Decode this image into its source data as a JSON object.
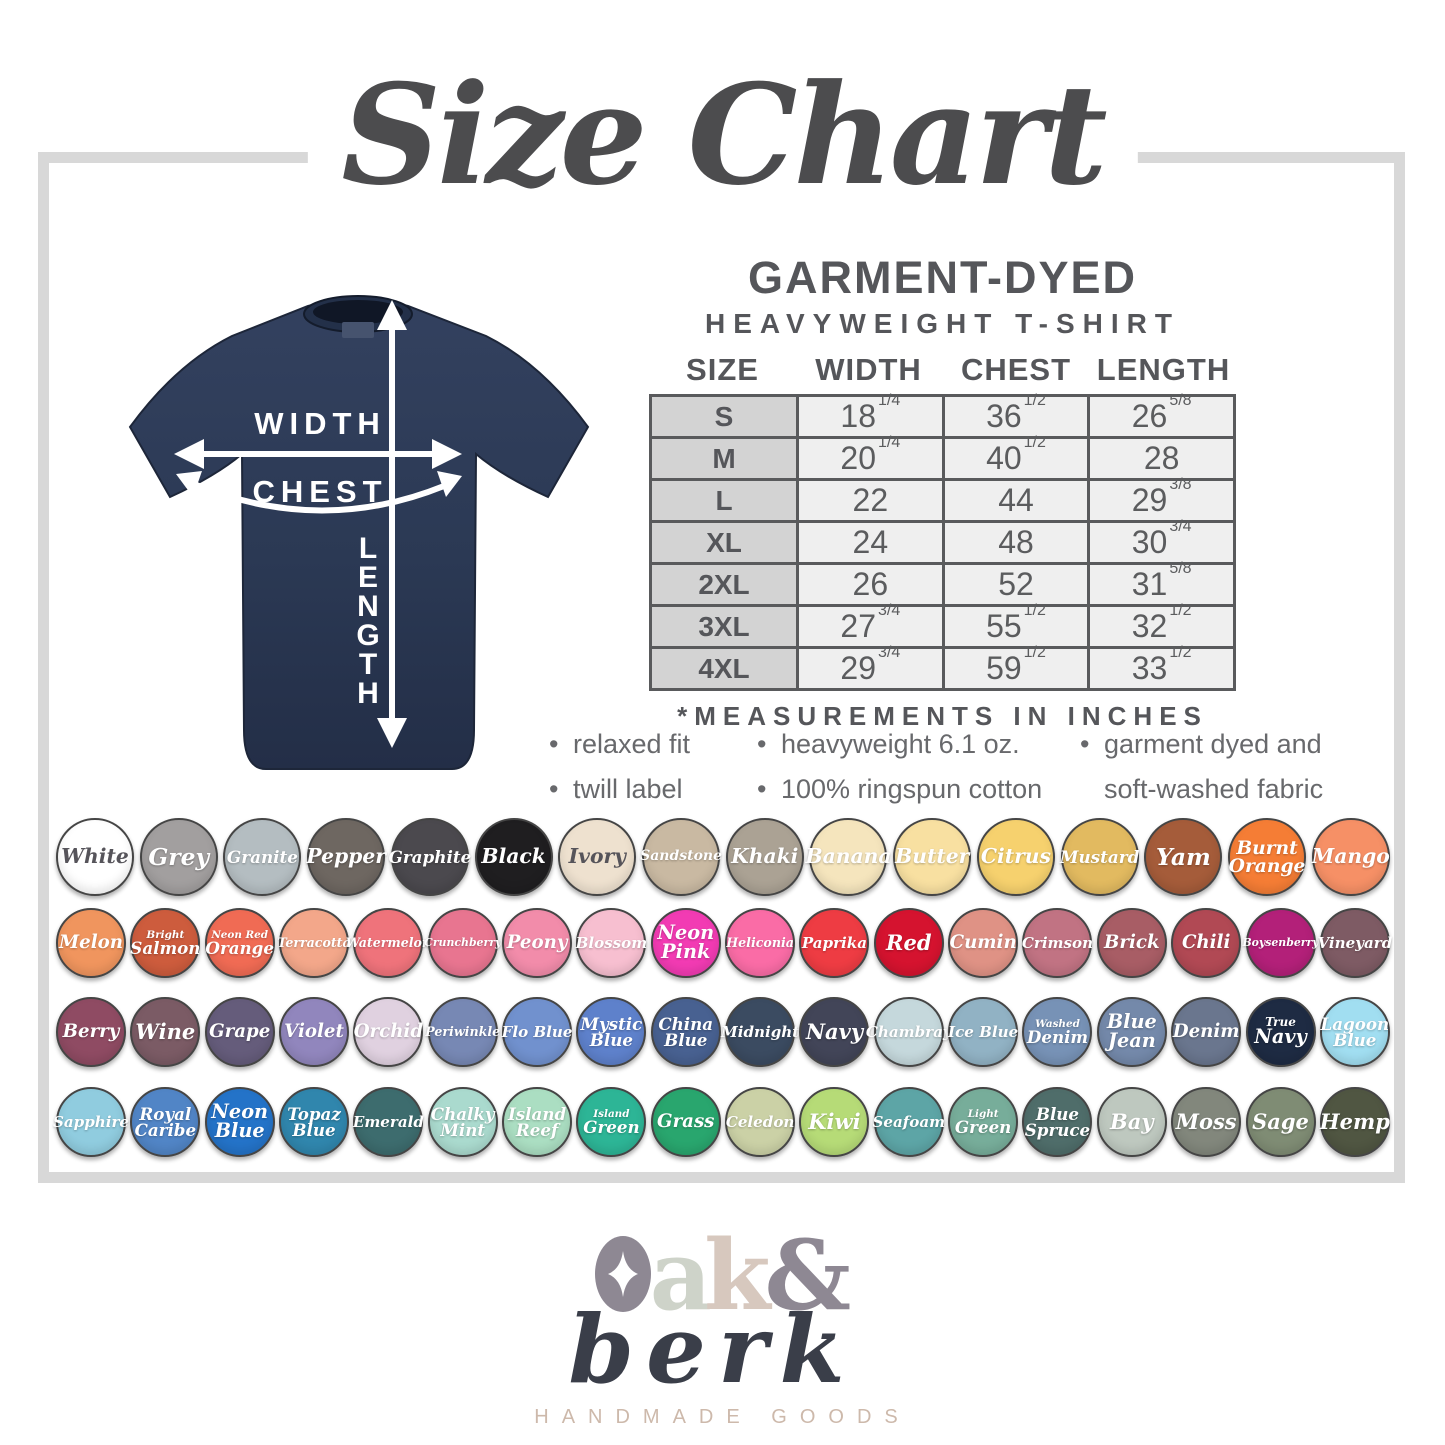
{
  "title": "Size Chart",
  "product": {
    "heading": "GARMENT-DYED",
    "subheading": "HEAVYWEIGHT T-SHIRT"
  },
  "size_table": {
    "columns": [
      "SIZE",
      "WIDTH",
      "CHEST",
      "LENGTH"
    ],
    "rows": [
      {
        "size": "S",
        "width": {
          "whole": "18",
          "frac": "1/4"
        },
        "chest": {
          "whole": "36",
          "frac": "1/2"
        },
        "length": {
          "whole": "26",
          "frac": "5/8"
        }
      },
      {
        "size": "M",
        "width": {
          "whole": "20",
          "frac": "1/4"
        },
        "chest": {
          "whole": "40",
          "frac": "1/2"
        },
        "length": {
          "whole": "28",
          "frac": ""
        }
      },
      {
        "size": "L",
        "width": {
          "whole": "22",
          "frac": ""
        },
        "chest": {
          "whole": "44",
          "frac": ""
        },
        "length": {
          "whole": "29",
          "frac": "3/8"
        }
      },
      {
        "size": "XL",
        "width": {
          "whole": "24",
          "frac": ""
        },
        "chest": {
          "whole": "48",
          "frac": ""
        },
        "length": {
          "whole": "30",
          "frac": "3/4"
        }
      },
      {
        "size": "2XL",
        "width": {
          "whole": "26",
          "frac": ""
        },
        "chest": {
          "whole": "52",
          "frac": ""
        },
        "length": {
          "whole": "31",
          "frac": "5/8"
        }
      },
      {
        "size": "3XL",
        "width": {
          "whole": "27",
          "frac": "3/4"
        },
        "chest": {
          "whole": "55",
          "frac": "1/2"
        },
        "length": {
          "whole": "32",
          "frac": "1/2"
        }
      },
      {
        "size": "4XL",
        "width": {
          "whole": "29",
          "frac": "3/4"
        },
        "chest": {
          "whole": "59",
          "frac": "1/2"
        },
        "length": {
          "whole": "33",
          "frac": "1/2"
        }
      }
    ],
    "note": "*MEASUREMENTS IN INCHES"
  },
  "features": {
    "columns": [
      [
        {
          "text": "relaxed fit",
          "bullet": true
        },
        {
          "text": "twill label",
          "bullet": true
        }
      ],
      [
        {
          "text": "heavyweight 6.1 oz.",
          "bullet": true
        },
        {
          "text": "100% ringspun cotton",
          "bullet": true
        }
      ],
      [
        {
          "text": "garment dyed and",
          "bullet": true
        },
        {
          "text": "soft-washed fabric",
          "bullet": false
        }
      ]
    ]
  },
  "diagram": {
    "shirt_color": "#2b3954",
    "labels": {
      "width": "WIDTH",
      "chest": "CHEST",
      "length": "LENGTH"
    }
  },
  "swatches": {
    "rows": [
      {
        "items": [
          {
            "name": "White",
            "color": "#ffffff",
            "dark_text": true
          },
          {
            "name": "Grey",
            "color": "#a29f9f"
          },
          {
            "name": "Granite",
            "color": "#b4bdc1"
          },
          {
            "name": "Pepper",
            "color": "#6e6761"
          },
          {
            "name": "Graphite",
            "color": "#4b494e"
          },
          {
            "name": "Black",
            "color": "#1f1e20"
          },
          {
            "name": "Ivory",
            "color": "#eee1cf",
            "dark_text": true
          },
          {
            "name": "Sandstone",
            "color": "#c9b9a2"
          },
          {
            "name": "Khaki",
            "color": "#aba294"
          },
          {
            "name": "Banana",
            "color": "#f5e5bd"
          },
          {
            "name": "Butter",
            "color": "#f8e0a1"
          },
          {
            "name": "Citrus",
            "color": "#f6d16e"
          },
          {
            "name": "Mustard",
            "color": "#e2ba60"
          },
          {
            "name": "Yam",
            "color": "#a55c3a"
          },
          {
            "name": "Burnt Orange",
            "color": "#f57d35",
            "lines": [
              "Burnt",
              "Orange"
            ]
          },
          {
            "name": "Mango",
            "color": "#f69066"
          }
        ]
      },
      {
        "items": [
          {
            "name": "Melon",
            "color": "#f0955e"
          },
          {
            "name": "Bright Salmon",
            "color": "#cd5c3d",
            "lines": [
              "Bright",
              "Salmon"
            ],
            "small_first": true
          },
          {
            "name": "Neon Red Orange",
            "color": "#f06b54",
            "lines": [
              "Neon Red",
              "Orange"
            ],
            "small_first": true
          },
          {
            "name": "Terracotta",
            "color": "#f3a78a"
          },
          {
            "name": "Watermelon",
            "color": "#ef737b"
          },
          {
            "name": "Crunchberry",
            "color": "#e87590"
          },
          {
            "name": "Peony",
            "color": "#f28caa"
          },
          {
            "name": "Blossom",
            "color": "#f7bfd0"
          },
          {
            "name": "Neon Pink",
            "color": "#f23bb3",
            "lines": [
              "Neon",
              "Pink"
            ]
          },
          {
            "name": "Heliconia",
            "color": "#fa6ca6"
          },
          {
            "name": "Paprika",
            "color": "#ee3c43"
          },
          {
            "name": "Red",
            "color": "#d5132f"
          },
          {
            "name": "Cumin",
            "color": "#df9285"
          },
          {
            "name": "Crimson",
            "color": "#c17383"
          },
          {
            "name": "Brick",
            "color": "#a85d65"
          },
          {
            "name": "Chili",
            "color": "#b14954"
          },
          {
            "name": "Boysenberry",
            "color": "#b32079"
          },
          {
            "name": "Vineyard",
            "color": "#7e5b64"
          }
        ]
      },
      {
        "items": [
          {
            "name": "Berry",
            "color": "#8f4b63"
          },
          {
            "name": "Wine",
            "color": "#7b5b65"
          },
          {
            "name": "Grape",
            "color": "#655c7b"
          },
          {
            "name": "Violet",
            "color": "#9186bd"
          },
          {
            "name": "Orchid",
            "color": "#e0d1e0"
          },
          {
            "name": "Periwinkle",
            "color": "#7788b4"
          },
          {
            "name": "Flo Blue",
            "color": "#7191ce"
          },
          {
            "name": "Mystic Blue",
            "color": "#5e81cb",
            "lines": [
              "Mystic",
              "Blue"
            ]
          },
          {
            "name": "China Blue",
            "color": "#486191",
            "lines": [
              "China",
              "Blue"
            ]
          },
          {
            "name": "Midnight",
            "color": "#3b4b61"
          },
          {
            "name": "Navy",
            "color": "#424558"
          },
          {
            "name": "Chambray",
            "color": "#c5d8dc"
          },
          {
            "name": "Ice Blue",
            "color": "#91b2c4"
          },
          {
            "name": "Washed Denim",
            "color": "#7792b6",
            "lines": [
              "Washed",
              "Denim"
            ],
            "small_first": true
          },
          {
            "name": "Blue Jean",
            "color": "#7489aa",
            "lines": [
              "Blue",
              "Jean"
            ]
          },
          {
            "name": "Denim",
            "color": "#6a768e"
          },
          {
            "name": "True Navy",
            "color": "#1e2b43",
            "lines": [
              "True",
              "Navy"
            ],
            "small_first": true
          },
          {
            "name": "Lagoon Blue",
            "color": "#a1def1",
            "lines": [
              "Lagoon",
              "Blue"
            ]
          }
        ]
      },
      {
        "items": [
          {
            "name": "Sapphire",
            "color": "#90ccdf"
          },
          {
            "name": "Royal Caribe",
            "color": "#5185c6",
            "lines": [
              "Royal",
              "Caribe"
            ]
          },
          {
            "name": "Neon Blue",
            "color": "#2473c8",
            "lines": [
              "Neon",
              "Blue"
            ]
          },
          {
            "name": "Topaz Blue",
            "color": "#3086ad",
            "lines": [
              "Topaz",
              "Blue"
            ]
          },
          {
            "name": "Emerald",
            "color": "#3d6c6e"
          },
          {
            "name": "Chalky Mint",
            "color": "#aadace",
            "lines": [
              "Chalky",
              "Mint"
            ]
          },
          {
            "name": "Island Reef",
            "color": "#abdec2",
            "lines": [
              "Island",
              "Reef"
            ]
          },
          {
            "name": "Island Green",
            "color": "#2db596",
            "lines": [
              "Island",
              "Green"
            ],
            "small_first": true
          },
          {
            "name": "Grass",
            "color": "#29a66e"
          },
          {
            "name": "Celedon",
            "color": "#cbd1a6"
          },
          {
            "name": "Kiwi",
            "color": "#b6db77"
          },
          {
            "name": "Seafoam",
            "color": "#5da5a6"
          },
          {
            "name": "Light Green",
            "color": "#77ad9a",
            "lines": [
              "Light",
              "Green"
            ],
            "small_first": true
          },
          {
            "name": "Blue Spruce",
            "color": "#4f6d6a",
            "lines": [
              "Blue",
              "Spruce"
            ]
          },
          {
            "name": "Bay",
            "color": "#bec8bf"
          },
          {
            "name": "Moss",
            "color": "#82877c"
          },
          {
            "name": "Sage",
            "color": "#7f8c74"
          },
          {
            "name": "Hemp",
            "color": "#505642"
          }
        ]
      }
    ]
  },
  "logo": {
    "a": "a",
    "k": "k",
    "amp": "&",
    "script": "berk",
    "tagline": "HANDMADE GOODS"
  }
}
